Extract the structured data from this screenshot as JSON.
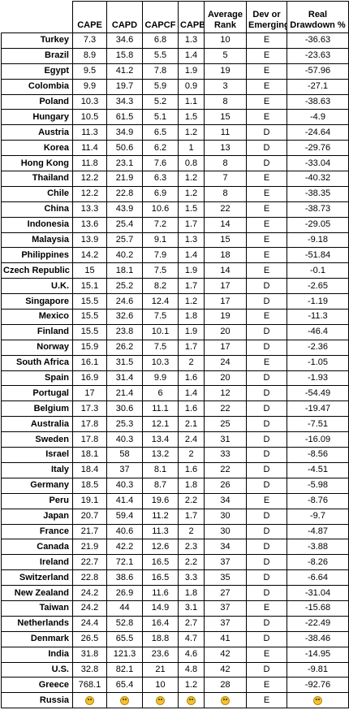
{
  "table": {
    "headers": {
      "country": "",
      "cape": "CAPE",
      "capd": "CAPD",
      "capcf": "CAPCF",
      "capb": "CAPB",
      "rank": "Average Rank",
      "dev": "Dev or Emerging",
      "drawdown": "Real Drawdown %"
    },
    "rows": [
      {
        "country": "Turkey",
        "cape": "7.3",
        "capd": "34.6",
        "capcf": "6.8",
        "capb": "1.3",
        "rank": "10",
        "dev": "E",
        "drawdown": "-36.63"
      },
      {
        "country": "Brazil",
        "cape": "8.9",
        "capd": "15.8",
        "capcf": "5.5",
        "capb": "1.4",
        "rank": "5",
        "dev": "E",
        "drawdown": "-23.63"
      },
      {
        "country": "Egypt",
        "cape": "9.5",
        "capd": "41.2",
        "capcf": "7.8",
        "capb": "1.9",
        "rank": "19",
        "dev": "E",
        "drawdown": "-57.96"
      },
      {
        "country": "Colombia",
        "cape": "9.9",
        "capd": "19.7",
        "capcf": "5.9",
        "capb": "0.9",
        "rank": "3",
        "dev": "E",
        "drawdown": "-27.1"
      },
      {
        "country": "Poland",
        "cape": "10.3",
        "capd": "34.3",
        "capcf": "5.2",
        "capb": "1.1",
        "rank": "8",
        "dev": "E",
        "drawdown": "-38.63"
      },
      {
        "country": "Hungary",
        "cape": "10.5",
        "capd": "61.5",
        "capcf": "5.1",
        "capb": "1.5",
        "rank": "15",
        "dev": "E",
        "drawdown": "-4.9"
      },
      {
        "country": "Austria",
        "cape": "11.3",
        "capd": "34.9",
        "capcf": "6.5",
        "capb": "1.2",
        "rank": "11",
        "dev": "D",
        "drawdown": "-24.64"
      },
      {
        "country": "Korea",
        "cape": "11.4",
        "capd": "50.6",
        "capcf": "6.2",
        "capb": "1",
        "rank": "13",
        "dev": "D",
        "drawdown": "-29.76"
      },
      {
        "country": "Hong Kong",
        "cape": "11.8",
        "capd": "23.1",
        "capcf": "7.6",
        "capb": "0.8",
        "rank": "8",
        "dev": "D",
        "drawdown": "-33.04"
      },
      {
        "country": "Thailand",
        "cape": "12.2",
        "capd": "21.9",
        "capcf": "6.3",
        "capb": "1.2",
        "rank": "7",
        "dev": "E",
        "drawdown": "-40.32"
      },
      {
        "country": "Chile",
        "cape": "12.2",
        "capd": "22.8",
        "capcf": "6.9",
        "capb": "1.2",
        "rank": "8",
        "dev": "E",
        "drawdown": "-38.35"
      },
      {
        "country": "China",
        "cape": "13.3",
        "capd": "43.9",
        "capcf": "10.6",
        "capb": "1.5",
        "rank": "22",
        "dev": "E",
        "drawdown": "-38.73"
      },
      {
        "country": "Indonesia",
        "cape": "13.6",
        "capd": "25.4",
        "capcf": "7.2",
        "capb": "1.7",
        "rank": "14",
        "dev": "E",
        "drawdown": "-29.05"
      },
      {
        "country": "Malaysia",
        "cape": "13.9",
        "capd": "25.7",
        "capcf": "9.1",
        "capb": "1.3",
        "rank": "15",
        "dev": "E",
        "drawdown": "-9.18"
      },
      {
        "country": "Philippines",
        "cape": "14.2",
        "capd": "40.2",
        "capcf": "7.9",
        "capb": "1.4",
        "rank": "18",
        "dev": "E",
        "drawdown": "-51.84"
      },
      {
        "country": "Czech Republic",
        "cape": "15",
        "capd": "18.1",
        "capcf": "7.5",
        "capb": "1.9",
        "rank": "14",
        "dev": "E",
        "drawdown": "-0.1"
      },
      {
        "country": "U.K.",
        "cape": "15.1",
        "capd": "25.2",
        "capcf": "8.2",
        "capb": "1.7",
        "rank": "17",
        "dev": "D",
        "drawdown": "-2.65"
      },
      {
        "country": "Singapore",
        "cape": "15.5",
        "capd": "24.6",
        "capcf": "12.4",
        "capb": "1.2",
        "rank": "17",
        "dev": "D",
        "drawdown": "-1.19"
      },
      {
        "country": "Mexico",
        "cape": "15.5",
        "capd": "32.6",
        "capcf": "7.5",
        "capb": "1.8",
        "rank": "19",
        "dev": "E",
        "drawdown": "-11.3"
      },
      {
        "country": "Finland",
        "cape": "15.5",
        "capd": "23.8",
        "capcf": "10.1",
        "capb": "1.9",
        "rank": "20",
        "dev": "D",
        "drawdown": "-46.4"
      },
      {
        "country": "Norway",
        "cape": "15.9",
        "capd": "26.2",
        "capcf": "7.5",
        "capb": "1.7",
        "rank": "17",
        "dev": "D",
        "drawdown": "-2.36"
      },
      {
        "country": "South Africa",
        "cape": "16.1",
        "capd": "31.5",
        "capcf": "10.3",
        "capb": "2",
        "rank": "24",
        "dev": "E",
        "drawdown": "-1.05"
      },
      {
        "country": "Spain",
        "cape": "16.9",
        "capd": "31.4",
        "capcf": "9.9",
        "capb": "1.6",
        "rank": "20",
        "dev": "D",
        "drawdown": "-1.93"
      },
      {
        "country": "Portugal",
        "cape": "17",
        "capd": "21.4",
        "capcf": "6",
        "capb": "1.4",
        "rank": "12",
        "dev": "D",
        "drawdown": "-54.49"
      },
      {
        "country": "Belgium",
        "cape": "17.3",
        "capd": "30.6",
        "capcf": "11.1",
        "capb": "1.6",
        "rank": "22",
        "dev": "D",
        "drawdown": "-19.47"
      },
      {
        "country": "Australia",
        "cape": "17.8",
        "capd": "25.3",
        "capcf": "12.1",
        "capb": "2.1",
        "rank": "25",
        "dev": "D",
        "drawdown": "-7.51"
      },
      {
        "country": "Sweden",
        "cape": "17.8",
        "capd": "40.3",
        "capcf": "13.4",
        "capb": "2.4",
        "rank": "31",
        "dev": "D",
        "drawdown": "-16.09"
      },
      {
        "country": "Israel",
        "cape": "18.1",
        "capd": "58",
        "capcf": "13.2",
        "capb": "2",
        "rank": "33",
        "dev": "D",
        "drawdown": "-8.56"
      },
      {
        "country": "Italy",
        "cape": "18.4",
        "capd": "37",
        "capcf": "8.1",
        "capb": "1.6",
        "rank": "22",
        "dev": "D",
        "drawdown": "-4.51"
      },
      {
        "country": "Germany",
        "cape": "18.5",
        "capd": "40.3",
        "capcf": "8.7",
        "capb": "1.8",
        "rank": "26",
        "dev": "D",
        "drawdown": "-5.98"
      },
      {
        "country": "Peru",
        "cape": "19.1",
        "capd": "41.4",
        "capcf": "19.6",
        "capb": "2.2",
        "rank": "34",
        "dev": "E",
        "drawdown": "-8.76"
      },
      {
        "country": "Japan",
        "cape": "20.7",
        "capd": "59.4",
        "capcf": "11.2",
        "capb": "1.7",
        "rank": "30",
        "dev": "D",
        "drawdown": "-9.7"
      },
      {
        "country": "France",
        "cape": "21.7",
        "capd": "40.6",
        "capcf": "11.3",
        "capb": "2",
        "rank": "30",
        "dev": "D",
        "drawdown": "-4.87"
      },
      {
        "country": "Canada",
        "cape": "21.9",
        "capd": "42.2",
        "capcf": "12.6",
        "capb": "2.3",
        "rank": "34",
        "dev": "D",
        "drawdown": "-3.88"
      },
      {
        "country": "Ireland",
        "cape": "22.7",
        "capd": "72.1",
        "capcf": "16.5",
        "capb": "2.2",
        "rank": "37",
        "dev": "D",
        "drawdown": "-8.26"
      },
      {
        "country": "Switzerland",
        "cape": "22.8",
        "capd": "38.6",
        "capcf": "16.5",
        "capb": "3.3",
        "rank": "35",
        "dev": "D",
        "drawdown": "-6.64"
      },
      {
        "country": "New Zealand",
        "cape": "24.2",
        "capd": "26.9",
        "capcf": "11.6",
        "capb": "1.8",
        "rank": "27",
        "dev": "D",
        "drawdown": "-31.04"
      },
      {
        "country": "Taiwan",
        "cape": "24.2",
        "capd": "44",
        "capcf": "14.9",
        "capb": "3.1",
        "rank": "37",
        "dev": "E",
        "drawdown": "-15.68"
      },
      {
        "country": "Netherlands",
        "cape": "24.4",
        "capd": "52.8",
        "capcf": "16.4",
        "capb": "2.7",
        "rank": "37",
        "dev": "D",
        "drawdown": "-22.49"
      },
      {
        "country": "Denmark",
        "cape": "26.5",
        "capd": "65.5",
        "capcf": "18.8",
        "capb": "4.7",
        "rank": "41",
        "dev": "D",
        "drawdown": "-38.46"
      },
      {
        "country": "India",
        "cape": "31.8",
        "capd": "121.3",
        "capcf": "23.6",
        "capb": "4.6",
        "rank": "42",
        "dev": "E",
        "drawdown": "-14.95"
      },
      {
        "country": "U.S.",
        "cape": "32.8",
        "capd": "82.1",
        "capcf": "21",
        "capb": "4.8",
        "rank": "42",
        "dev": "D",
        "drawdown": "-9.81"
      },
      {
        "country": "Greece",
        "cape": "768.1",
        "capd": "65.4",
        "capcf": "10",
        "capb": "1.2",
        "rank": "28",
        "dev": "E",
        "drawdown": "-92.76"
      },
      {
        "country": "Russia",
        "cape": "",
        "capd": "",
        "capcf": "",
        "capb": "",
        "rank": "",
        "dev": "E",
        "drawdown": "",
        "emoji_icon": "screaming-face-icon"
      }
    ]
  }
}
